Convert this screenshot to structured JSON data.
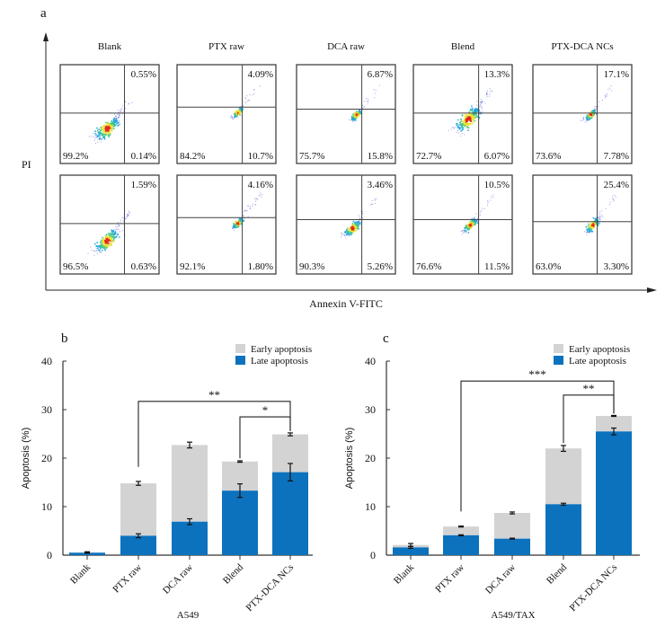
{
  "panel_a": {
    "label": "a",
    "y_axis_label": "PI",
    "x_axis_label": "Annexin V-FITC",
    "columns": [
      "Blank",
      "PTX raw",
      "DCA raw",
      "Blend",
      "PTX-DCA NCs"
    ],
    "rows": [
      [
        {
          "ul": "",
          "ur": "0.55%",
          "ll": "99.2%",
          "lr": "0.14%"
        },
        {
          "ul": "",
          "ur": "4.09%",
          "ll": "84.2%",
          "lr": "10.7%"
        },
        {
          "ul": "",
          "ur": "6.87%",
          "ll": "75.7%",
          "lr": "15.8%"
        },
        {
          "ul": "",
          "ur": "13.3%",
          "ll": "72.7%",
          "lr": "6.07%"
        },
        {
          "ul": "",
          "ur": "17.1%",
          "ll": "73.6%",
          "lr": "7.78%"
        }
      ],
      [
        {
          "ul": "",
          "ur": "1.59%",
          "ll": "96.5%",
          "lr": "0.63%"
        },
        {
          "ul": "",
          "ur": "4.16%",
          "ll": "92.1%",
          "lr": "1.80%"
        },
        {
          "ul": "",
          "ur": "3.46%",
          "ll": "90.3%",
          "lr": "5.26%"
        },
        {
          "ul": "",
          "ur": "10.5%",
          "ll": "76.6%",
          "lr": "11.5%"
        },
        {
          "ul": "",
          "ur": "25.4%",
          "ll": "63.0%",
          "lr": "3.30%"
        }
      ]
    ]
  },
  "colors": {
    "early": "#d3d3d3",
    "late": "#0c72bd"
  },
  "chart_data": [
    {
      "panel_label": "b",
      "type": "bar",
      "stacked": true,
      "xlabel": "A549",
      "ylabel": "Apoptosis (%)",
      "ylim": [
        0,
        40
      ],
      "yticks": [
        "0",
        "10",
        "20",
        "30",
        "40"
      ],
      "categories": [
        "Blank",
        "PTX raw",
        "DCA raw",
        "Blend",
        "PTX-DCA NCs"
      ],
      "legend": "top-right",
      "series": [
        {
          "name": "Late apoptosis",
          "values": [
            0.5,
            4.0,
            6.9,
            13.3,
            17.1
          ],
          "errors": [
            0.1,
            0.4,
            0.6,
            1.4,
            1.8
          ]
        },
        {
          "name": "Early apoptosis",
          "values": [
            0.1,
            10.8,
            15.8,
            6.0,
            7.8
          ],
          "errors": [
            0.1,
            0.4,
            0.6,
            0.15,
            0.3
          ]
        }
      ],
      "significance": [
        {
          "from": "PTX raw",
          "to": "PTX-DCA NCs",
          "level": 31.7,
          "label": "**"
        },
        {
          "from": "Blend",
          "to": "PTX-DCA NCs",
          "level": 28.5,
          "label": "*"
        }
      ]
    },
    {
      "panel_label": "c",
      "type": "bar",
      "stacked": true,
      "xlabel": "A549/TAX",
      "ylabel": "Apoptosis (%)",
      "ylim": [
        0,
        40
      ],
      "yticks": [
        "0",
        "10",
        "20",
        "30",
        "40"
      ],
      "categories": [
        "Blank",
        "PTX raw",
        "DCA raw",
        "Blend",
        "PTX-DCA NCs"
      ],
      "legend": "top-right",
      "series": [
        {
          "name": "Late apoptosis",
          "values": [
            1.6,
            4.1,
            3.4,
            10.5,
            25.5
          ],
          "errors": [
            0.2,
            0.1,
            0.1,
            0.2,
            0.7
          ]
        },
        {
          "name": "Early apoptosis",
          "values": [
            0.5,
            1.8,
            5.3,
            11.5,
            3.2
          ],
          "errors": [
            0.3,
            0.1,
            0.2,
            0.6,
            0.1
          ]
        }
      ],
      "significance": [
        {
          "from": "PTX raw",
          "to": "PTX-DCA NCs",
          "level": 35.9,
          "label": "***"
        },
        {
          "from": "Blend",
          "to": "PTX-DCA NCs",
          "level": 33.0,
          "label": "**"
        }
      ]
    }
  ]
}
